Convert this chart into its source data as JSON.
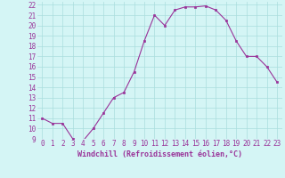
{
  "x": [
    0,
    1,
    2,
    3,
    4,
    5,
    6,
    7,
    8,
    9,
    10,
    11,
    12,
    13,
    14,
    15,
    16,
    17,
    18,
    19,
    20,
    21,
    22,
    23
  ],
  "y": [
    11,
    10.5,
    10.5,
    9,
    8.8,
    10,
    11.5,
    13,
    13.5,
    15.5,
    18.5,
    21,
    20,
    21.5,
    21.8,
    21.8,
    21.9,
    21.5,
    20.5,
    18.5,
    17,
    17,
    16,
    14.5
  ],
  "line_color": "#993399",
  "marker": "s",
  "marker_size": 2,
  "bg_color": "#d4f5f5",
  "grid_color": "#aadddd",
  "xlabel": "Windchill (Refroidissement éolien,°C)",
  "ylim": [
    9,
    22.3
  ],
  "xlim": [
    -0.5,
    23.5
  ],
  "yticks": [
    9,
    10,
    11,
    12,
    13,
    14,
    15,
    16,
    17,
    18,
    19,
    20,
    21,
    22
  ],
  "xticks": [
    0,
    1,
    2,
    3,
    4,
    5,
    6,
    7,
    8,
    9,
    10,
    11,
    12,
    13,
    14,
    15,
    16,
    17,
    18,
    19,
    20,
    21,
    22,
    23
  ],
  "tick_label_size": 5.5,
  "xlabel_size": 6.0
}
